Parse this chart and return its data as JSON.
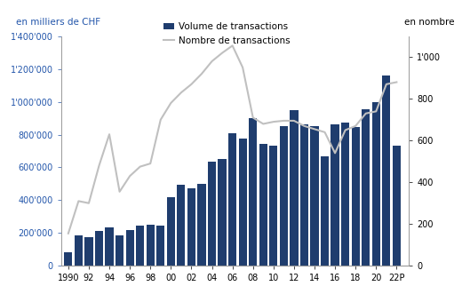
{
  "years": [
    1990,
    1991,
    1992,
    1993,
    1994,
    1995,
    1996,
    1997,
    1998,
    1999,
    2000,
    2001,
    2002,
    2003,
    2004,
    2005,
    2006,
    2007,
    2008,
    2009,
    2010,
    2011,
    2012,
    2013,
    2014,
    2015,
    2016,
    2017,
    2018,
    2019,
    2020,
    2021,
    2022
  ],
  "volume": [
    80000,
    185000,
    175000,
    215000,
    235000,
    185000,
    220000,
    245000,
    250000,
    245000,
    420000,
    495000,
    470000,
    500000,
    635000,
    650000,
    810000,
    775000,
    900000,
    745000,
    735000,
    850000,
    950000,
    865000,
    850000,
    665000,
    865000,
    875000,
    845000,
    955000,
    1000000,
    1160000,
    730000
  ],
  "nombre": [
    155,
    310,
    300,
    480,
    630,
    355,
    430,
    475,
    490,
    700,
    780,
    830,
    870,
    920,
    980,
    1020,
    1055,
    950,
    710,
    680,
    690,
    695,
    695,
    670,
    655,
    640,
    540,
    650,
    670,
    730,
    740,
    870,
    880
  ],
  "bar_color": "#1f3d6e",
  "line_color": "#c0c0c0",
  "left_label": "en milliers de CHF",
  "right_label": "en nombre",
  "legend_bar": "Volume de transactions",
  "legend_line": "Nombre de transactions",
  "ylim_left": [
    0,
    1400000
  ],
  "ylim_right": [
    0,
    1100
  ],
  "yticks_left": [
    0,
    200000,
    400000,
    600000,
    800000,
    1000000,
    1200000,
    1400000
  ],
  "ytick_labels_left": [
    "0",
    "200'000",
    "400'000",
    "600'000",
    "800'000",
    "1'000'000",
    "1'200'000",
    "1'400'000"
  ],
  "yticks_right": [
    0,
    200,
    400,
    600,
    800,
    1000
  ],
  "ytick_labels_right": [
    "0",
    "200",
    "400",
    "600",
    "800",
    "1'000"
  ],
  "xtick_labels": [
    "1990",
    "92",
    "94",
    "96",
    "98",
    "00",
    "02",
    "04",
    "06",
    "08",
    "10",
    "12",
    "14",
    "16",
    "18",
    "20",
    "22P"
  ],
  "xtick_positions": [
    1990,
    1992,
    1994,
    1996,
    1998,
    2000,
    2002,
    2004,
    2006,
    2008,
    2010,
    2012,
    2014,
    2016,
    2018,
    2020,
    2022
  ],
  "label_color": "#2255aa",
  "tick_color": "#2255aa",
  "axis_color": "#999999",
  "bg_color": "#ffffff"
}
